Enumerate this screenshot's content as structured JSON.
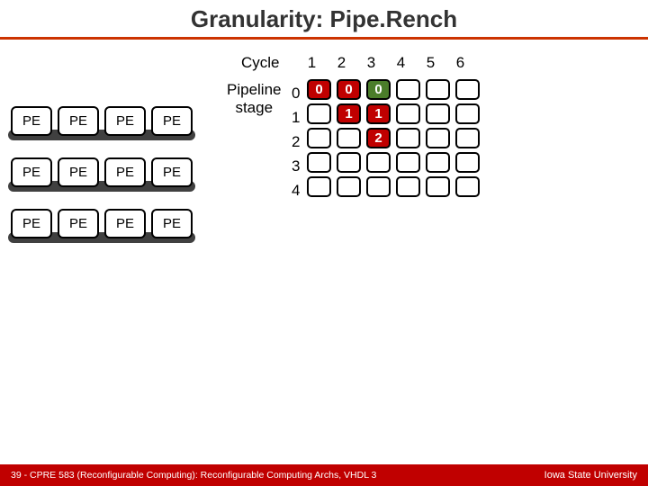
{
  "title": "Granularity: Pipe.Rench",
  "colors": {
    "rule": "#cc3300",
    "pe_underbar": "#404040",
    "cell_empty_bg": "#ffffff",
    "cell_fill_red": "#c00000",
    "cell_fill_green": "#4b7d2a",
    "cell_label_color": "#ffffff",
    "footer_bg": "#c00000"
  },
  "pe": {
    "rows": 3,
    "cols": 4,
    "label": "PE"
  },
  "cycles": {
    "label": "Cycle",
    "values": [
      "1",
      "2",
      "3",
      "4",
      "5",
      "6"
    ]
  },
  "pipeline": {
    "label_line1": "Pipeline",
    "label_line2": "stage",
    "row_labels": [
      "0",
      "1",
      "2",
      "3",
      "4"
    ]
  },
  "grid": {
    "rows": 5,
    "cols": 6,
    "cells": [
      [
        {
          "fill": "red",
          "text": "0"
        },
        {
          "fill": "red",
          "text": "0"
        },
        {
          "fill": "green",
          "text": "0"
        },
        {},
        {},
        {}
      ],
      [
        {},
        {
          "fill": "red",
          "text": "1"
        },
        {
          "fill": "red",
          "text": "1"
        },
        {},
        {},
        {}
      ],
      [
        {},
        {},
        {
          "fill": "red",
          "text": "2"
        },
        {},
        {},
        {}
      ],
      [
        {},
        {},
        {},
        {},
        {},
        {}
      ],
      [
        {},
        {},
        {},
        {},
        {},
        {}
      ]
    ]
  },
  "footer": {
    "left": "39 - CPRE 583 (Reconfigurable Computing):  Reconfigurable Computing Archs, VHDL 3",
    "right": "Iowa State University"
  }
}
